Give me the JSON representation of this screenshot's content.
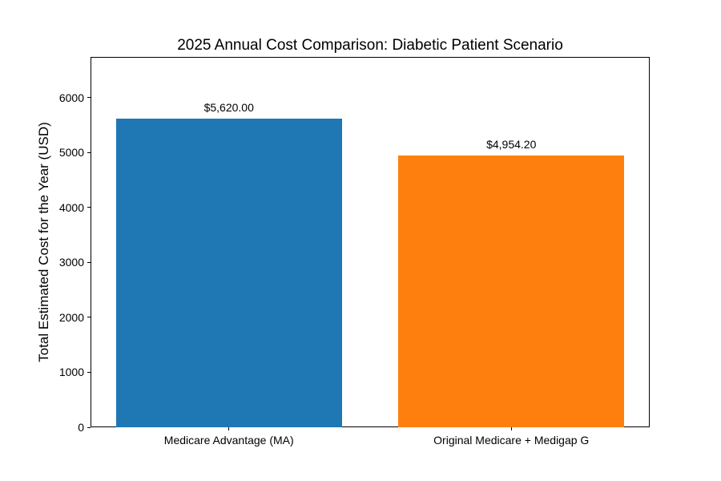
{
  "chart_data": {
    "type": "bar",
    "title": "2025 Annual Cost Comparison: Diabetic Patient Scenario",
    "xlabel": "",
    "ylabel": "Total Estimated Cost for the Year (USD)",
    "categories": [
      "Medicare Advantage (MA)",
      "Original Medicare + Medigap G"
    ],
    "values": [
      5620.0,
      4954.2
    ],
    "bar_value_labels": [
      "$5,620.00",
      "$4,954.20"
    ],
    "bar_colors": [
      "#1f77b4",
      "#ff7f0e"
    ],
    "yticks": [
      0,
      1000,
      2000,
      3000,
      4000,
      5000,
      6000
    ],
    "ytick_labels": [
      "0",
      "1000",
      "2000",
      "3000",
      "4000",
      "5000",
      "6000"
    ],
    "ylim": [
      0,
      6744
    ],
    "grid": false,
    "legend": false,
    "background_color": "#ffffff",
    "axis_color": "#000000"
  }
}
